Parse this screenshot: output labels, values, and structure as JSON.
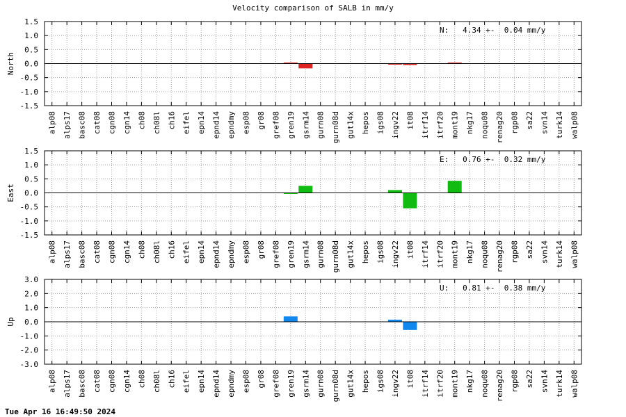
{
  "chart_data": {
    "type": "bar",
    "title": "Velocity comparison of SALB in mm/y",
    "timestamp": "Tue Apr 16 16:49:50 2024",
    "categories": [
      "alp08",
      "alps17",
      "basc08",
      "cat08",
      "cgn08",
      "cgn14",
      "ch08",
      "ch08l",
      "ch16",
      "eifel",
      "epn14",
      "epnd14",
      "epndmy",
      "esp08",
      "gr08",
      "gref08",
      "gren19",
      "gsrm14",
      "gurn08",
      "gurn08d",
      "gut14x",
      "hepos",
      "igs08",
      "ingv22",
      "it08",
      "itrf14",
      "itrf20",
      "mont19",
      "nkg17",
      "noqu08",
      "renag20",
      "rgp08",
      "sa22",
      "svn14",
      "turk14",
      "walp08"
    ],
    "panels": [
      {
        "name": "North",
        "ylabel": "North",
        "color": "#dd2222",
        "ylim": [
          -1.5,
          1.5
        ],
        "yticks": [
          "-1.5",
          "-1.0",
          "-0.5",
          "0.0",
          "0.5",
          "1.0",
          "1.5"
        ],
        "annotation": "N:   4.34 +-  0.04 mm/y",
        "values": {
          "gren19": 0.02,
          "gsrm14": -0.17,
          "ingv22": -0.02,
          "it08": -0.05,
          "mont19": 0.02
        }
      },
      {
        "name": "East",
        "ylabel": "East",
        "color": "#11bb11",
        "ylim": [
          -1.5,
          1.5
        ],
        "yticks": [
          "-1.5",
          "-1.0",
          "-0.5",
          "0.0",
          "0.5",
          "1.0",
          "1.5"
        ],
        "annotation": "E:   0.76 +-  0.32 mm/y",
        "values": {
          "gren19": -0.02,
          "gsrm14": 0.25,
          "ingv22": 0.1,
          "it08": -0.55,
          "mont19": 0.43
        }
      },
      {
        "name": "Up",
        "ylabel": "Up",
        "color": "#1188ee",
        "ylim": [
          -3.0,
          3.0
        ],
        "yticks": [
          "-3.0",
          "-2.0",
          "-1.0",
          "0.0",
          "1.0",
          "2.0",
          "3.0"
        ],
        "annotation": "U:   0.81 +-  0.38 mm/y",
        "values": {
          "gren19": 0.38,
          "ingv22": 0.15,
          "it08": -0.58
        }
      }
    ],
    "grid": true,
    "legend": "none"
  }
}
